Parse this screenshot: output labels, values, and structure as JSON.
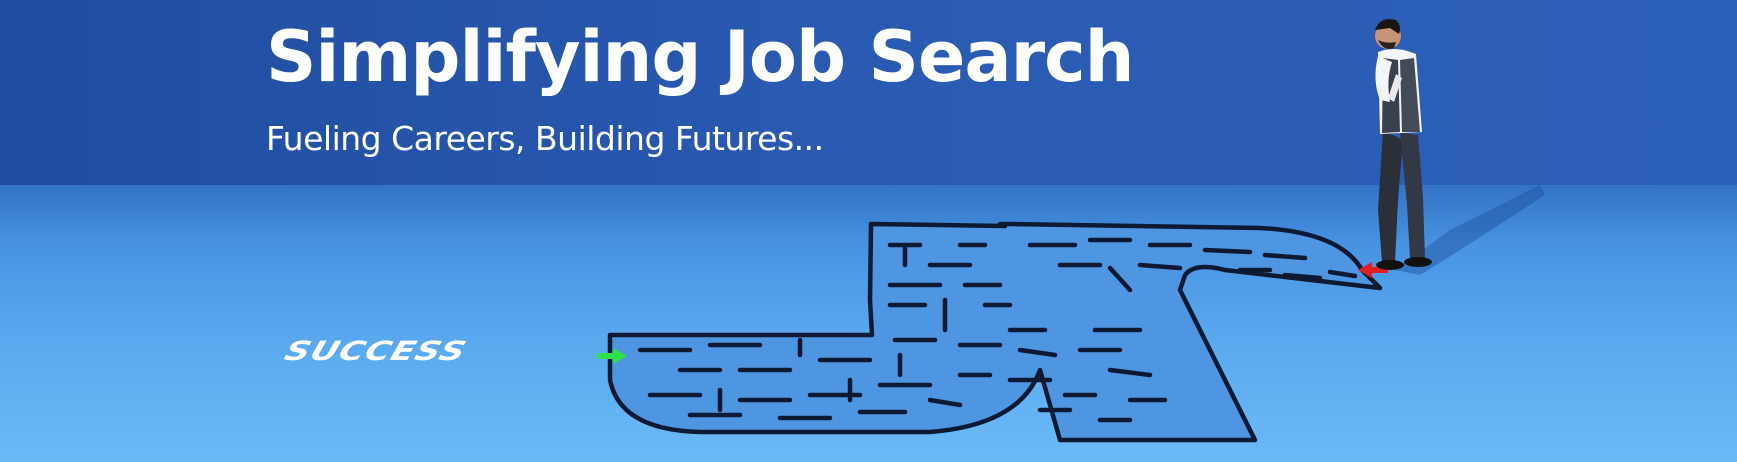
{
  "hero": {
    "title": "Simplifying Job Search",
    "subtitle": "Fueling Careers, Building Futures...",
    "maze_label": "SUCCESS"
  },
  "colors": {
    "wall": "#2a5bb2",
    "floor": "#5aaaf0",
    "maze_line": "#0e1a33",
    "maze_fill": "#4e95e2",
    "start_arrow": "#e02020",
    "exit_arrow": "#2ee04a"
  },
  "icons": {
    "start_arrow": "red-arrow-icon",
    "exit_arrow": "green-arrow-icon",
    "person": "thinking-man-figure"
  }
}
